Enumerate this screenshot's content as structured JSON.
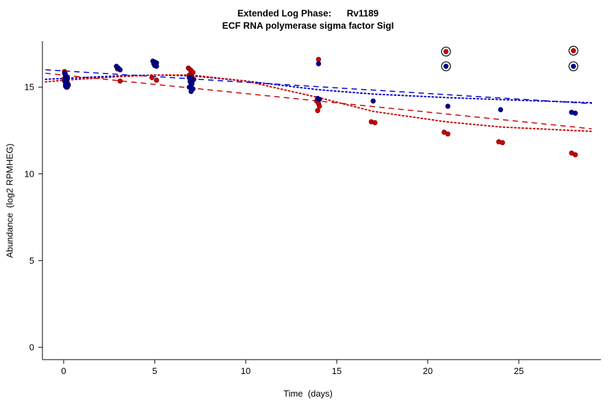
{
  "title": "Extended Log Phase:      Rv1189",
  "subtitle": "ECF RNA polymerase sigma factor SigI",
  "axes": {
    "x_label": "Time  (days)",
    "y_label": "Abundance  (log2 RPMHEG)"
  },
  "chart_data": {
    "type": "scatter",
    "title": "Extended Log Phase: Rv1189",
    "subtitle": "ECF RNA polymerase sigma factor SigI",
    "xlabel": "Time (days)",
    "ylabel": "Abundance (log2 RPMHEG)",
    "xlim": [
      -1,
      29
    ],
    "ylim": [
      0,
      17.6
    ],
    "x_ticks": [
      0,
      5,
      10,
      15,
      20,
      25
    ],
    "y_ticks": [
      0,
      5,
      10,
      15
    ],
    "grid": false,
    "legend": "none",
    "series": [
      {
        "name": "red-points",
        "color": "#cc0000",
        "stroke": "#7a0000",
        "points": [
          [
            0.05,
            15.9
          ],
          [
            0.1,
            15.75
          ],
          [
            0.15,
            15.6
          ],
          [
            0.05,
            15.5
          ],
          [
            0.2,
            15.45
          ],
          [
            0.1,
            15.3
          ],
          [
            0.15,
            15.25
          ],
          [
            0.25,
            15.15
          ],
          [
            0.1,
            15.05
          ],
          [
            0.2,
            15.0
          ],
          [
            2.95,
            16.05
          ],
          [
            3.1,
            15.35
          ],
          [
            4.85,
            15.55
          ],
          [
            5.1,
            15.4
          ],
          [
            6.85,
            16.1
          ],
          [
            6.95,
            16.0
          ],
          [
            7.0,
            15.95
          ],
          [
            7.1,
            15.85
          ],
          [
            6.9,
            15.7
          ],
          [
            7.0,
            15.6
          ],
          [
            7.05,
            15.55
          ],
          [
            7.15,
            15.45
          ],
          [
            6.95,
            15.35
          ],
          [
            7.05,
            15.3
          ],
          [
            14.0,
            16.6
          ],
          [
            13.9,
            14.2
          ],
          [
            14.0,
            14.05
          ],
          [
            14.05,
            13.9
          ],
          [
            13.95,
            13.65
          ],
          [
            16.9,
            13.0
          ],
          [
            17.1,
            12.95
          ],
          [
            21.0,
            17.05
          ],
          [
            20.9,
            12.4
          ],
          [
            21.1,
            12.3
          ],
          [
            23.9,
            11.85
          ],
          [
            24.1,
            11.8
          ],
          [
            28.0,
            17.1
          ],
          [
            27.9,
            11.2
          ],
          [
            28.1,
            11.1
          ]
        ]
      },
      {
        "name": "blue-points",
        "color": "#000099",
        "stroke": "#000050",
        "points": [
          [
            0.05,
            15.8
          ],
          [
            0.1,
            15.65
          ],
          [
            0.2,
            15.55
          ],
          [
            0.1,
            15.5
          ],
          [
            0.15,
            15.4
          ],
          [
            0.05,
            15.35
          ],
          [
            0.2,
            15.25
          ],
          [
            0.1,
            15.15
          ],
          [
            0.25,
            15.1
          ],
          [
            0.15,
            15.0
          ],
          [
            2.9,
            16.2
          ],
          [
            3.0,
            16.1
          ],
          [
            3.1,
            16.0
          ],
          [
            4.9,
            16.5
          ],
          [
            5.0,
            16.45
          ],
          [
            5.1,
            16.4
          ],
          [
            4.95,
            16.35
          ],
          [
            5.05,
            16.3
          ],
          [
            5.0,
            16.25
          ],
          [
            5.1,
            16.2
          ],
          [
            6.9,
            15.55
          ],
          [
            7.0,
            15.5
          ],
          [
            7.1,
            15.4
          ],
          [
            6.95,
            15.3
          ],
          [
            7.05,
            15.2
          ],
          [
            7.0,
            15.1
          ],
          [
            6.9,
            15.0
          ],
          [
            7.1,
            14.9
          ],
          [
            7.0,
            14.75
          ],
          [
            14.0,
            16.35
          ],
          [
            13.95,
            14.35
          ],
          [
            14.05,
            14.3
          ],
          [
            17.0,
            14.2
          ],
          [
            21.0,
            16.2
          ],
          [
            21.1,
            13.9
          ],
          [
            24.0,
            13.7
          ],
          [
            28.0,
            16.2
          ],
          [
            27.9,
            13.55
          ],
          [
            28.1,
            13.5
          ]
        ]
      }
    ],
    "outlier_circles": [
      [
        21.0,
        17.05
      ],
      [
        21.0,
        16.2
      ],
      [
        28.0,
        17.1
      ],
      [
        28.0,
        16.2
      ]
    ],
    "trend_lines": [
      {
        "name": "blue-dashed-fit",
        "color": "#0000cc",
        "style": "dash",
        "points": [
          [
            -1,
            16.0
          ],
          [
            29,
            14.05
          ]
        ]
      },
      {
        "name": "red-dashed-fit",
        "color": "#cc0000",
        "style": "dash",
        "points": [
          [
            -1,
            15.8
          ],
          [
            29,
            12.6
          ]
        ]
      },
      {
        "name": "blue-dotted-fit",
        "color": "#0000cc",
        "style": "dot",
        "points": [
          [
            -1,
            15.45
          ],
          [
            0,
            15.5
          ],
          [
            3,
            15.65
          ],
          [
            5,
            15.7
          ],
          [
            7,
            15.65
          ],
          [
            10,
            15.35
          ],
          [
            14,
            14.85
          ],
          [
            17,
            14.6
          ],
          [
            21,
            14.4
          ],
          [
            24,
            14.28
          ],
          [
            29,
            14.1
          ]
        ]
      },
      {
        "name": "red-dotted-fit",
        "color": "#cc0000",
        "style": "dot",
        "points": [
          [
            -1,
            15.3
          ],
          [
            0,
            15.4
          ],
          [
            3,
            15.6
          ],
          [
            5,
            15.7
          ],
          [
            7,
            15.7
          ],
          [
            10,
            15.35
          ],
          [
            14,
            14.4
          ],
          [
            17,
            13.6
          ],
          [
            21,
            13.0
          ],
          [
            24,
            12.7
          ],
          [
            29,
            12.45
          ]
        ]
      }
    ]
  }
}
